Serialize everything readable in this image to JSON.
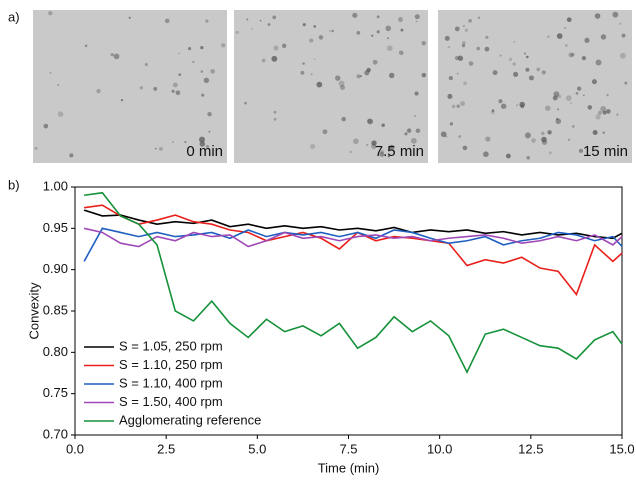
{
  "panel_a": {
    "label": "a)",
    "images": [
      {
        "caption": "0 min"
      },
      {
        "caption": "7.5 min"
      },
      {
        "caption": "15 min"
      }
    ]
  },
  "panel_b": {
    "label": "b)"
  },
  "chart_data": {
    "type": "line",
    "x_label": "Time (min)",
    "y_label": "Convexity",
    "x": [
      0.25,
      0.75,
      1.25,
      1.75,
      2.25,
      2.75,
      3.25,
      3.75,
      4.25,
      4.75,
      5.25,
      5.75,
      6.25,
      6.75,
      7.25,
      7.75,
      8.25,
      8.75,
      9.25,
      9.75,
      10.25,
      10.75,
      11.25,
      11.75,
      12.25,
      12.75,
      13.25,
      13.75,
      14.25,
      14.75,
      15
    ],
    "series": [
      {
        "name": "S = 1.05, 250 rpm",
        "color": "#000000",
        "values": [
          0.972,
          0.965,
          0.966,
          0.96,
          0.955,
          0.958,
          0.956,
          0.96,
          0.952,
          0.955,
          0.95,
          0.953,
          0.95,
          0.952,
          0.948,
          0.95,
          0.947,
          0.951,
          0.945,
          0.948,
          0.946,
          0.948,
          0.944,
          0.946,
          0.942,
          0.945,
          0.942,
          0.944,
          0.94,
          0.938,
          0.944
        ]
      },
      {
        "name": "S = 1.10, 250 rpm",
        "color": "#e8211c",
        "values": [
          0.975,
          0.978,
          0.965,
          0.955,
          0.96,
          0.966,
          0.958,
          0.955,
          0.948,
          0.945,
          0.935,
          0.94,
          0.945,
          0.938,
          0.925,
          0.945,
          0.935,
          0.94,
          0.938,
          0.935,
          0.932,
          0.905,
          0.912,
          0.908,
          0.915,
          0.902,
          0.898,
          0.87,
          0.93,
          0.91,
          0.92
        ]
      },
      {
        "name": "S = 1.10, 400 rpm",
        "color": "#1f5fbf",
        "values": [
          0.91,
          0.95,
          0.945,
          0.94,
          0.945,
          0.94,
          0.942,
          0.945,
          0.938,
          0.948,
          0.94,
          0.945,
          0.942,
          0.945,
          0.94,
          0.945,
          0.938,
          0.948,
          0.945,
          0.938,
          0.932,
          0.935,
          0.94,
          0.93,
          0.935,
          0.938,
          0.945,
          0.942,
          0.935,
          0.94,
          0.928
        ]
      },
      {
        "name": "S = 1.50, 400 rpm",
        "color": "#a048b8",
        "values": [
          0.95,
          0.945,
          0.932,
          0.928,
          0.94,
          0.935,
          0.945,
          0.94,
          0.942,
          0.928,
          0.935,
          0.945,
          0.938,
          0.94,
          0.935,
          0.94,
          0.942,
          0.938,
          0.94,
          0.935,
          0.938,
          0.94,
          0.942,
          0.938,
          0.932,
          0.935,
          0.94,
          0.935,
          0.942,
          0.93,
          0.94
        ]
      },
      {
        "name": "Agglomerating reference",
        "color": "#16923a",
        "values": [
          0.99,
          0.993,
          0.965,
          0.955,
          0.93,
          0.85,
          0.838,
          0.862,
          0.835,
          0.818,
          0.84,
          0.825,
          0.832,
          0.82,
          0.835,
          0.805,
          0.818,
          0.843,
          0.825,
          0.838,
          0.82,
          0.776,
          0.822,
          0.828,
          0.818,
          0.808,
          0.805,
          0.792,
          0.815,
          0.825,
          0.81
        ]
      }
    ],
    "xlim": [
      0,
      15
    ],
    "ylim": [
      0.7,
      1.0
    ],
    "xticks": [
      {
        "value": 0,
        "label": "0.0"
      },
      2.5,
      {
        "value": 5,
        "label": "5.0"
      },
      7.5,
      {
        "value": 10,
        "label": "10.0"
      },
      12.5,
      {
        "value": 15,
        "label": "15.0"
      }
    ],
    "yticks": [
      {
        "value": 0.7,
        "label": "0.70"
      },
      0.75,
      {
        "value": 0.8,
        "label": "0.80"
      },
      0.85,
      {
        "value": 0.9,
        "label": "0.90"
      },
      0.95,
      {
        "value": 1.0,
        "label": "1.00"
      }
    ],
    "grid": false,
    "legend": "lower left"
  }
}
